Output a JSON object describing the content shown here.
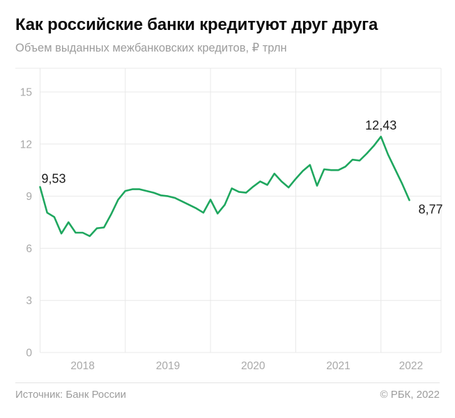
{
  "header": {
    "title": "Как российские банки кредитуют друг друга",
    "subtitle": "Объем выданных межбанковских кредитов, ₽ трлн"
  },
  "footer": {
    "source": "Источник: Банк России",
    "copyright": "© РБК, 2022"
  },
  "colors": {
    "line": "#1fa75f",
    "grid": "#e8e8e8",
    "tick_label": "#a8a8a8",
    "annotation": "#1b1b1b"
  },
  "chart_data": {
    "type": "line",
    "title": "Как российские банки кредитуют друг друга",
    "subtitle": "Объем выданных межбанковских кредитов, ₽ трлн",
    "ylabel": "₽ трлн",
    "xlabel": "",
    "ylim": [
      0,
      15
    ],
    "yticks": [
      0,
      3,
      6,
      9,
      12,
      15
    ],
    "xticks": [
      "2018",
      "2019",
      "2020",
      "2021",
      "2022"
    ],
    "grid": true,
    "legend": "none",
    "x": [
      "2018-01",
      "2018-02",
      "2018-03",
      "2018-04",
      "2018-05",
      "2018-06",
      "2018-07",
      "2018-08",
      "2018-09",
      "2018-10",
      "2018-11",
      "2018-12",
      "2019-01",
      "2019-02",
      "2019-03",
      "2019-04",
      "2019-05",
      "2019-06",
      "2019-07",
      "2019-08",
      "2019-09",
      "2019-10",
      "2019-11",
      "2019-12",
      "2020-01",
      "2020-02",
      "2020-03",
      "2020-04",
      "2020-05",
      "2020-06",
      "2020-07",
      "2020-08",
      "2020-09",
      "2020-10",
      "2020-11",
      "2020-12",
      "2021-01",
      "2021-02",
      "2021-03",
      "2021-04",
      "2021-05",
      "2021-06",
      "2021-07",
      "2021-08",
      "2021-09",
      "2021-10",
      "2021-11",
      "2021-12",
      "2022-01",
      "2022-02",
      "2022-03",
      "2022-04",
      "2022-05"
    ],
    "values": [
      9.53,
      8.05,
      7.8,
      6.85,
      7.5,
      6.9,
      6.9,
      6.7,
      7.15,
      7.2,
      7.95,
      8.8,
      9.3,
      9.4,
      9.4,
      9.3,
      9.2,
      9.05,
      9.0,
      8.9,
      8.7,
      8.5,
      8.3,
      8.05,
      8.8,
      8.0,
      8.5,
      9.45,
      9.25,
      9.2,
      9.55,
      9.85,
      9.65,
      10.3,
      9.85,
      9.5,
      10.0,
      10.45,
      10.8,
      9.6,
      10.55,
      10.5,
      10.5,
      10.7,
      11.1,
      11.05,
      11.45,
      11.9,
      12.43,
      11.4,
      10.55,
      9.7,
      8.77
    ],
    "annotations": [
      {
        "point": 0,
        "text": "9,53",
        "position": "above-right"
      },
      {
        "point": 48,
        "text": "12,43",
        "position": "above"
      },
      {
        "point": 52,
        "text": "8,77",
        "position": "right-below"
      }
    ]
  }
}
